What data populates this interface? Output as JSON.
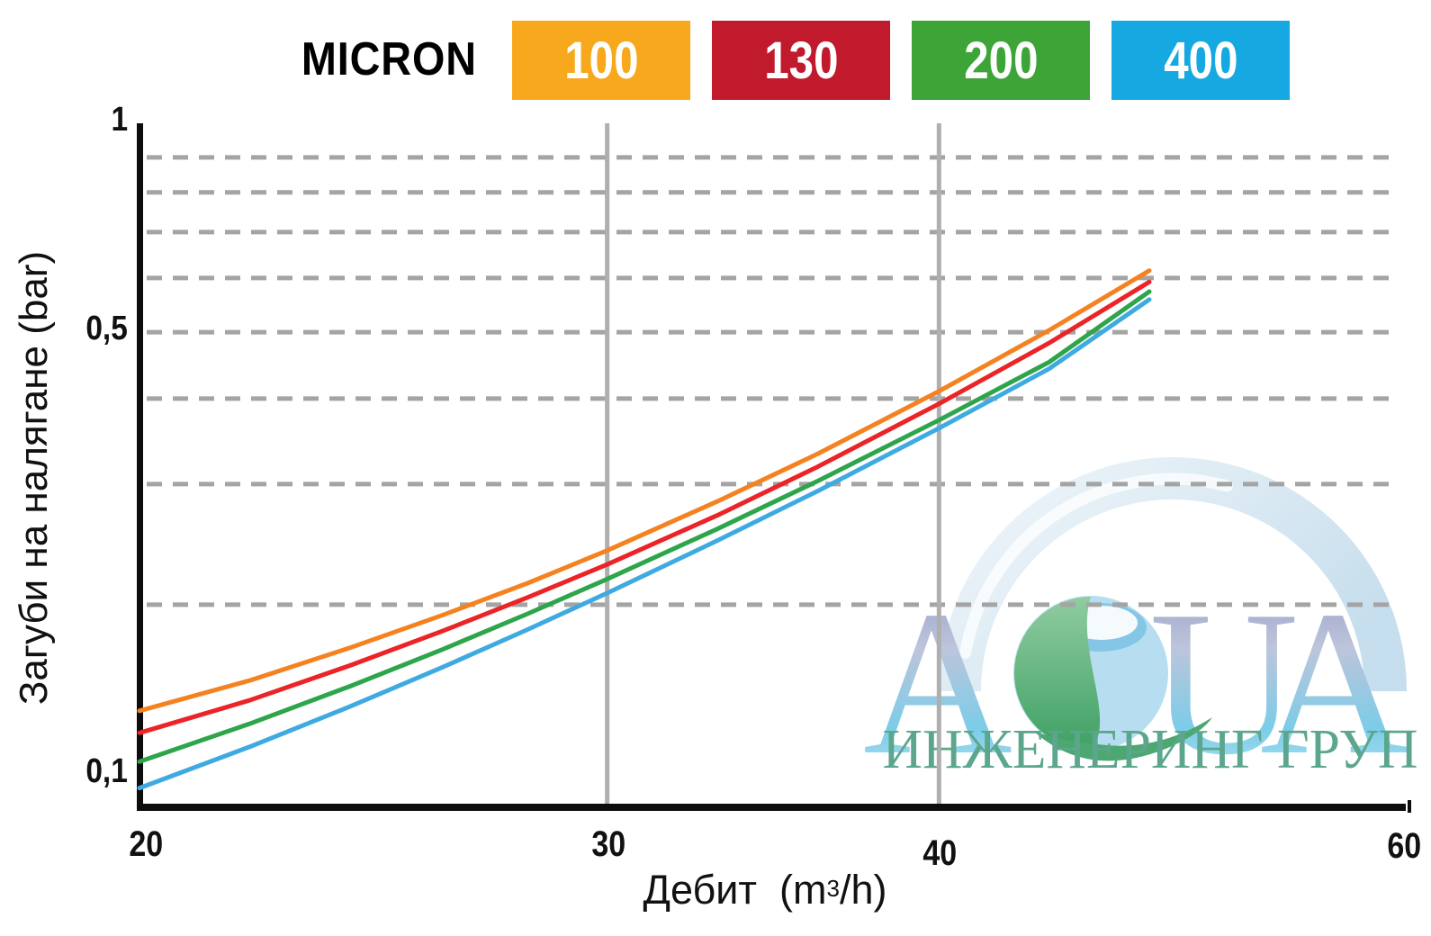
{
  "legend": {
    "title": "MICRON",
    "items": [
      {
        "label": "100",
        "color": "#F7A81C"
      },
      {
        "label": "130",
        "color": "#C01A2C"
      },
      {
        "label": "200",
        "color": "#3DA437"
      },
      {
        "label": "400",
        "color": "#15A8E1"
      }
    ]
  },
  "watermark": {
    "word": "AQUA",
    "subtitle": "ИНЖЕНЕРИНГ ГРУП",
    "subtitle_color": "#5CA68D"
  },
  "chart_data": {
    "type": "line",
    "title": "",
    "xlabel": "Дебит (m³/h)",
    "xlabel_parts": {
      "pre": "Дебит  (m",
      "sup": "3",
      "post": "/h)"
    },
    "ylabel": "Загуби на налягане (bar)",
    "x_scale": "log",
    "y_scale": "log",
    "xlim": [
      20,
      60
    ],
    "ylim": [
      0.1,
      1
    ],
    "x_ticks": [
      20,
      30,
      40,
      60
    ],
    "x_tick_labels": [
      "20",
      "30",
      "40",
      "60"
    ],
    "y_ticks": [
      1,
      0.5,
      0.1
    ],
    "y_tick_labels": [
      "1",
      "0,5",
      "0,1"
    ],
    "y_gridlines": [
      0.9,
      0.8,
      0.7,
      0.6,
      0.5,
      0.4,
      0.3,
      0.2
    ],
    "x_gridlines": [
      30,
      40
    ],
    "grid_color": "#A4A4A4",
    "vline_color": "#AFAFAF",
    "axis_color": "#0d0d0d",
    "series": [
      {
        "name": "100",
        "micron": 100,
        "color": "#F58220",
        "points": [
          [
            20,
            0.14
          ],
          [
            22,
            0.155
          ],
          [
            24,
            0.173
          ],
          [
            26,
            0.193
          ],
          [
            28,
            0.215
          ],
          [
            30,
            0.24
          ],
          [
            33,
            0.283
          ],
          [
            36,
            0.332
          ],
          [
            40,
            0.41
          ],
          [
            44,
            0.503
          ],
          [
            48,
            0.615
          ]
        ]
      },
      {
        "name": "130",
        "micron": 130,
        "color": "#EB2428",
        "points": [
          [
            20,
            0.13
          ],
          [
            22,
            0.145
          ],
          [
            24,
            0.163
          ],
          [
            26,
            0.183
          ],
          [
            28,
            0.205
          ],
          [
            30,
            0.229
          ],
          [
            33,
            0.27
          ],
          [
            36,
            0.318
          ],
          [
            40,
            0.393
          ],
          [
            44,
            0.482
          ],
          [
            48,
            0.592
          ]
        ]
      },
      {
        "name": "200",
        "micron": 200,
        "color": "#2EA54A",
        "points": [
          [
            20,
            0.118
          ],
          [
            22,
            0.134
          ],
          [
            24,
            0.152
          ],
          [
            26,
            0.172
          ],
          [
            28,
            0.194
          ],
          [
            30,
            0.218
          ],
          [
            33,
            0.258
          ],
          [
            36,
            0.303
          ],
          [
            40,
            0.372
          ],
          [
            44,
            0.452
          ],
          [
            48,
            0.573
          ]
        ]
      },
      {
        "name": "400",
        "micron": 400,
        "color": "#3FAAE1",
        "points": [
          [
            20,
            0.108
          ],
          [
            22,
            0.124
          ],
          [
            24,
            0.142
          ],
          [
            26,
            0.162
          ],
          [
            28,
            0.184
          ],
          [
            30,
            0.208
          ],
          [
            33,
            0.248
          ],
          [
            36,
            0.293
          ],
          [
            40,
            0.362
          ],
          [
            44,
            0.442
          ],
          [
            48,
            0.558
          ]
        ]
      }
    ]
  }
}
